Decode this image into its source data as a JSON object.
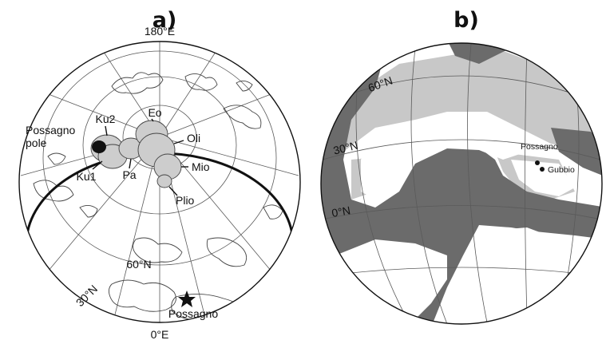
{
  "panels": {
    "a": {
      "label": "a)",
      "lon_top": "180°E",
      "lon_bottom": "0°E",
      "lat_60": "60°N",
      "lat_30": "30°N",
      "site_name": "Possagno",
      "pole_label": "Possagno\npole",
      "pole_label_line1": "Possagno",
      "pole_label_line2": "pole",
      "poles": [
        {
          "name": "Ku2"
        },
        {
          "name": "Ku1"
        },
        {
          "name": "Pa"
        },
        {
          "name": "Eo"
        },
        {
          "name": "Oli"
        },
        {
          "name": "Mio"
        },
        {
          "name": "Plio"
        }
      ]
    },
    "b": {
      "label": "b)",
      "lat_60": "60°N",
      "lat_30": "30°N",
      "lat_0": "0°N",
      "sites": [
        {
          "name": "Possagno"
        },
        {
          "name": "Gubbio"
        }
      ]
    }
  },
  "colors": {
    "ocean_dark": "#6b6b6b",
    "shelf_light": "#c8c8c8",
    "land": "#ffffff",
    "pole_fill": "#111111",
    "ellipse_fill": "#cdcdcd"
  }
}
